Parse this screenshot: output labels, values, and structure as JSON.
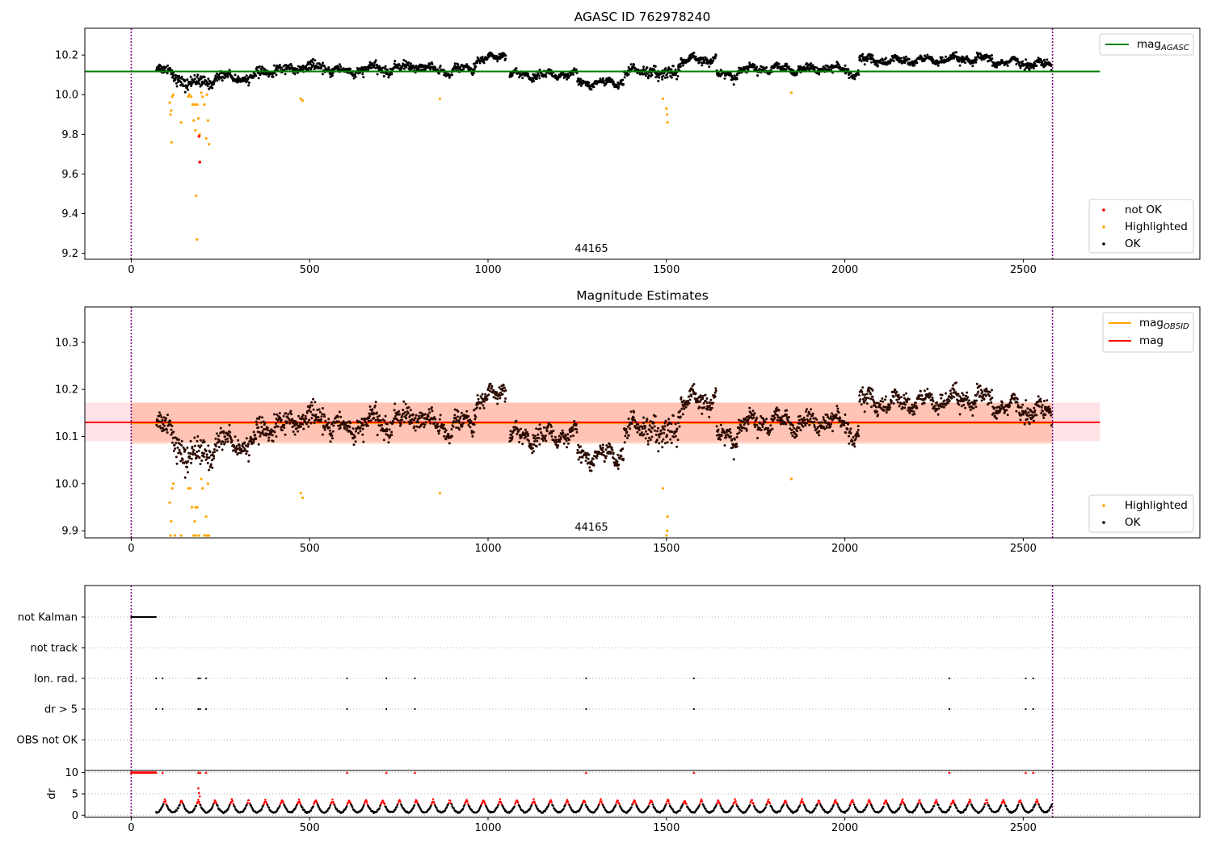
{
  "chart_data": [
    {
      "type": "scatter",
      "title": "AGASC ID 762978240",
      "xlim": [
        -130,
        2995
      ],
      "ylim": [
        9.17,
        10.335
      ],
      "xticks": [
        0,
        500,
        1000,
        1500,
        2000,
        2500
      ],
      "yticks": [
        9.2,
        9.4,
        9.6,
        9.8,
        10.0,
        10.2
      ],
      "annotation": "44165",
      "vlines": [
        0,
        2582
      ],
      "lines": [
        {
          "name": "mag_AGASC",
          "y": 10.117,
          "xrange": [
            -130,
            2715
          ],
          "color": "#008000"
        }
      ],
      "legend_lines": {
        "label": "mag",
        "sub": "AGASC"
      },
      "legend_points": [
        {
          "name": "not OK",
          "color": "#ff0000"
        },
        {
          "name": "Highlighted",
          "color": "#ffa500"
        },
        {
          "name": "OK",
          "color": "#000000"
        }
      ],
      "highlighted_points": [
        [
          108,
          9.96
        ],
        [
          110,
          9.9
        ],
        [
          112,
          9.92
        ],
        [
          113,
          9.76
        ],
        [
          115,
          9.99
        ],
        [
          118,
          10.0
        ],
        [
          140,
          9.86
        ],
        [
          160,
          9.99
        ],
        [
          163,
          10.0
        ],
        [
          168,
          9.99
        ],
        [
          172,
          9.95
        ],
        [
          175,
          9.87
        ],
        [
          178,
          9.95
        ],
        [
          180,
          9.82
        ],
        [
          182,
          9.49
        ],
        [
          184,
          9.27
        ],
        [
          185,
          9.95
        ],
        [
          188,
          9.88
        ],
        [
          192,
          9.8
        ],
        [
          196,
          10.01
        ],
        [
          200,
          9.99
        ],
        [
          205,
          9.95
        ],
        [
          210,
          9.78
        ],
        [
          212,
          10.0
        ],
        [
          215,
          9.87
        ],
        [
          218,
          9.75
        ],
        [
          475,
          9.98
        ],
        [
          480,
          9.97
        ],
        [
          865,
          9.98
        ],
        [
          1490,
          9.98
        ],
        [
          1500,
          9.93
        ],
        [
          1502,
          9.9
        ],
        [
          1503,
          9.86
        ],
        [
          1850,
          10.01
        ]
      ],
      "notok_points": [
        [
          190,
          9.79
        ],
        [
          192,
          9.66
        ]
      ],
      "ok_segments": [
        {
          "x0": 70,
          "x1": 100,
          "y0": 10.14,
          "y1": 10.12,
          "noise": 0.025
        },
        {
          "x0": 100,
          "x1": 150,
          "y0": 10.12,
          "y1": 10.06,
          "noise": 0.03
        },
        {
          "x0": 150,
          "x1": 210,
          "y0": 10.06,
          "y1": 10.06,
          "noise": 0.035
        },
        {
          "x0": 210,
          "x1": 260,
          "y0": 10.06,
          "y1": 10.1,
          "noise": 0.025
        },
        {
          "x0": 260,
          "x1": 350,
          "y0": 10.09,
          "y1": 10.08,
          "noise": 0.02
        },
        {
          "x0": 350,
          "x1": 500,
          "y0": 10.11,
          "y1": 10.14,
          "noise": 0.025
        },
        {
          "x0": 500,
          "x1": 600,
          "y0": 10.14,
          "y1": 10.12,
          "noise": 0.025
        },
        {
          "x0": 600,
          "x1": 700,
          "y0": 10.11,
          "y1": 10.14,
          "noise": 0.025
        },
        {
          "x0": 700,
          "x1": 800,
          "y0": 10.12,
          "y1": 10.15,
          "noise": 0.025
        },
        {
          "x0": 800,
          "x1": 880,
          "y0": 10.14,
          "y1": 10.12,
          "noise": 0.02
        },
        {
          "x0": 880,
          "x1": 960,
          "y0": 10.11,
          "y1": 10.14,
          "noise": 0.02
        },
        {
          "x0": 960,
          "x1": 1050,
          "y0": 10.16,
          "y1": 10.21,
          "noise": 0.02
        },
        {
          "x0": 1060,
          "x1": 1250,
          "y0": 10.1,
          "y1": 10.1,
          "noise": 0.02
        },
        {
          "x0": 1250,
          "x1": 1380,
          "y0": 10.06,
          "y1": 10.06,
          "noise": 0.02
        },
        {
          "x0": 1380,
          "x1": 1470,
          "y0": 10.11,
          "y1": 10.13,
          "noise": 0.025
        },
        {
          "x0": 1470,
          "x1": 1540,
          "y0": 10.08,
          "y1": 10.14,
          "noise": 0.035
        },
        {
          "x0": 1540,
          "x1": 1640,
          "y0": 10.17,
          "y1": 10.18,
          "noise": 0.02
        },
        {
          "x0": 1640,
          "x1": 1700,
          "y0": 10.1,
          "y1": 10.1,
          "noise": 0.02
        },
        {
          "x0": 1700,
          "x1": 1950,
          "y0": 10.13,
          "y1": 10.13,
          "noise": 0.02
        },
        {
          "x0": 1950,
          "x1": 2040,
          "y0": 10.14,
          "y1": 10.1,
          "noise": 0.025
        },
        {
          "x0": 2040,
          "x1": 2100,
          "y0": 10.18,
          "y1": 10.17,
          "noise": 0.025
        },
        {
          "x0": 2100,
          "x1": 2400,
          "y0": 10.17,
          "y1": 10.18,
          "noise": 0.02
        },
        {
          "x0": 2400,
          "x1": 2580,
          "y0": 10.17,
          "y1": 10.15,
          "noise": 0.02
        }
      ]
    },
    {
      "type": "scatter",
      "title": "Magnitude Estimates",
      "xlim": [
        -130,
        2995
      ],
      "ylim": [
        9.885,
        10.375
      ],
      "xticks": [
        0,
        500,
        1000,
        1500,
        2000,
        2500
      ],
      "yticks": [
        9.9,
        10.0,
        10.1,
        10.2,
        10.3
      ],
      "annotation": "44165",
      "vlines": [
        0,
        2582
      ],
      "bands": [
        {
          "y0": 10.09,
          "y1": 10.172,
          "xrange": [
            -130,
            2715
          ],
          "color": "#ffb6c1",
          "opacity": 0.4
        },
        {
          "y0": 10.085,
          "y1": 10.172,
          "xrange": [
            0,
            2580
          ],
          "color": "#ffa07a",
          "opacity": 0.45
        }
      ],
      "lines": [
        {
          "name": "mag_OBSID",
          "y": 10.128,
          "xrange": [
            0,
            2580
          ],
          "color": "#ffa500"
        },
        {
          "name": "mag",
          "y": 10.13,
          "xrange": [
            -130,
            2715
          ],
          "color": "#ff0000"
        }
      ],
      "legend_lines": [
        {
          "label": "mag",
          "sub": "OBSID",
          "color": "#ffa500"
        },
        {
          "label": "mag",
          "sub": "",
          "color": "#ff0000"
        }
      ],
      "legend_points": [
        {
          "name": "Highlighted",
          "color": "#ffa500"
        },
        {
          "name": "OK",
          "color": "#000000"
        }
      ],
      "highlighted_points": [
        [
          108,
          9.96
        ],
        [
          110,
          9.89
        ],
        [
          112,
          9.92
        ],
        [
          115,
          9.99
        ],
        [
          118,
          10.0
        ],
        [
          122,
          9.89
        ],
        [
          140,
          9.89
        ],
        [
          160,
          9.99
        ],
        [
          165,
          9.99
        ],
        [
          170,
          9.95
        ],
        [
          175,
          9.89
        ],
        [
          178,
          9.92
        ],
        [
          180,
          9.95
        ],
        [
          182,
          9.89
        ],
        [
          185,
          9.95
        ],
        [
          190,
          9.89
        ],
        [
          196,
          10.01
        ],
        [
          200,
          9.99
        ],
        [
          205,
          9.89
        ],
        [
          210,
          9.93
        ],
        [
          212,
          9.89
        ],
        [
          215,
          10.0
        ],
        [
          218,
          9.89
        ],
        [
          475,
          9.98
        ],
        [
          480,
          9.97
        ],
        [
          865,
          9.98
        ],
        [
          1490,
          9.99
        ],
        [
          1500,
          9.89
        ],
        [
          1502,
          9.9
        ],
        [
          1503,
          9.93
        ],
        [
          1850,
          10.01
        ]
      ],
      "ok_segments": "same-as-panel-1"
    },
    {
      "type": "scatter",
      "title": "",
      "xlim": [
        -130,
        2995
      ],
      "xticks": [
        0,
        500,
        1000,
        1500,
        2000,
        2500
      ],
      "categories": [
        "not Kalman",
        "not track",
        "Ion. rad.",
        "dr > 5",
        "OBS not OK"
      ],
      "flag_points": {
        "not Kalman": "dense 0-70",
        "not track": [],
        "Ion. rad.": [
          70,
          88,
          188,
          193,
          210,
          605,
          715,
          795,
          1275,
          1577,
          2293,
          2507,
          2528
        ],
        "dr > 5": [
          70,
          88,
          188,
          193,
          210,
          605,
          715,
          795,
          1275,
          1577,
          2293,
          2507,
          2528
        ],
        "OBS not OK": []
      },
      "vlines": [
        0,
        2582
      ]
    },
    {
      "type": "scatter",
      "title": "",
      "ylabel": "dr",
      "xlim": [
        -130,
        2995
      ],
      "ylim": [
        -0.5,
        10.5
      ],
      "xticks": [
        0,
        500,
        1000,
        1500,
        2000,
        2500
      ],
      "yticks": [
        0,
        5,
        10
      ],
      "clipped_points_at_10": [
        0,
        70,
        88,
        188,
        193,
        210,
        605,
        715,
        795,
        1275,
        1577,
        2293,
        2507,
        2528
      ],
      "vlines": [
        0,
        2582
      ]
    }
  ]
}
